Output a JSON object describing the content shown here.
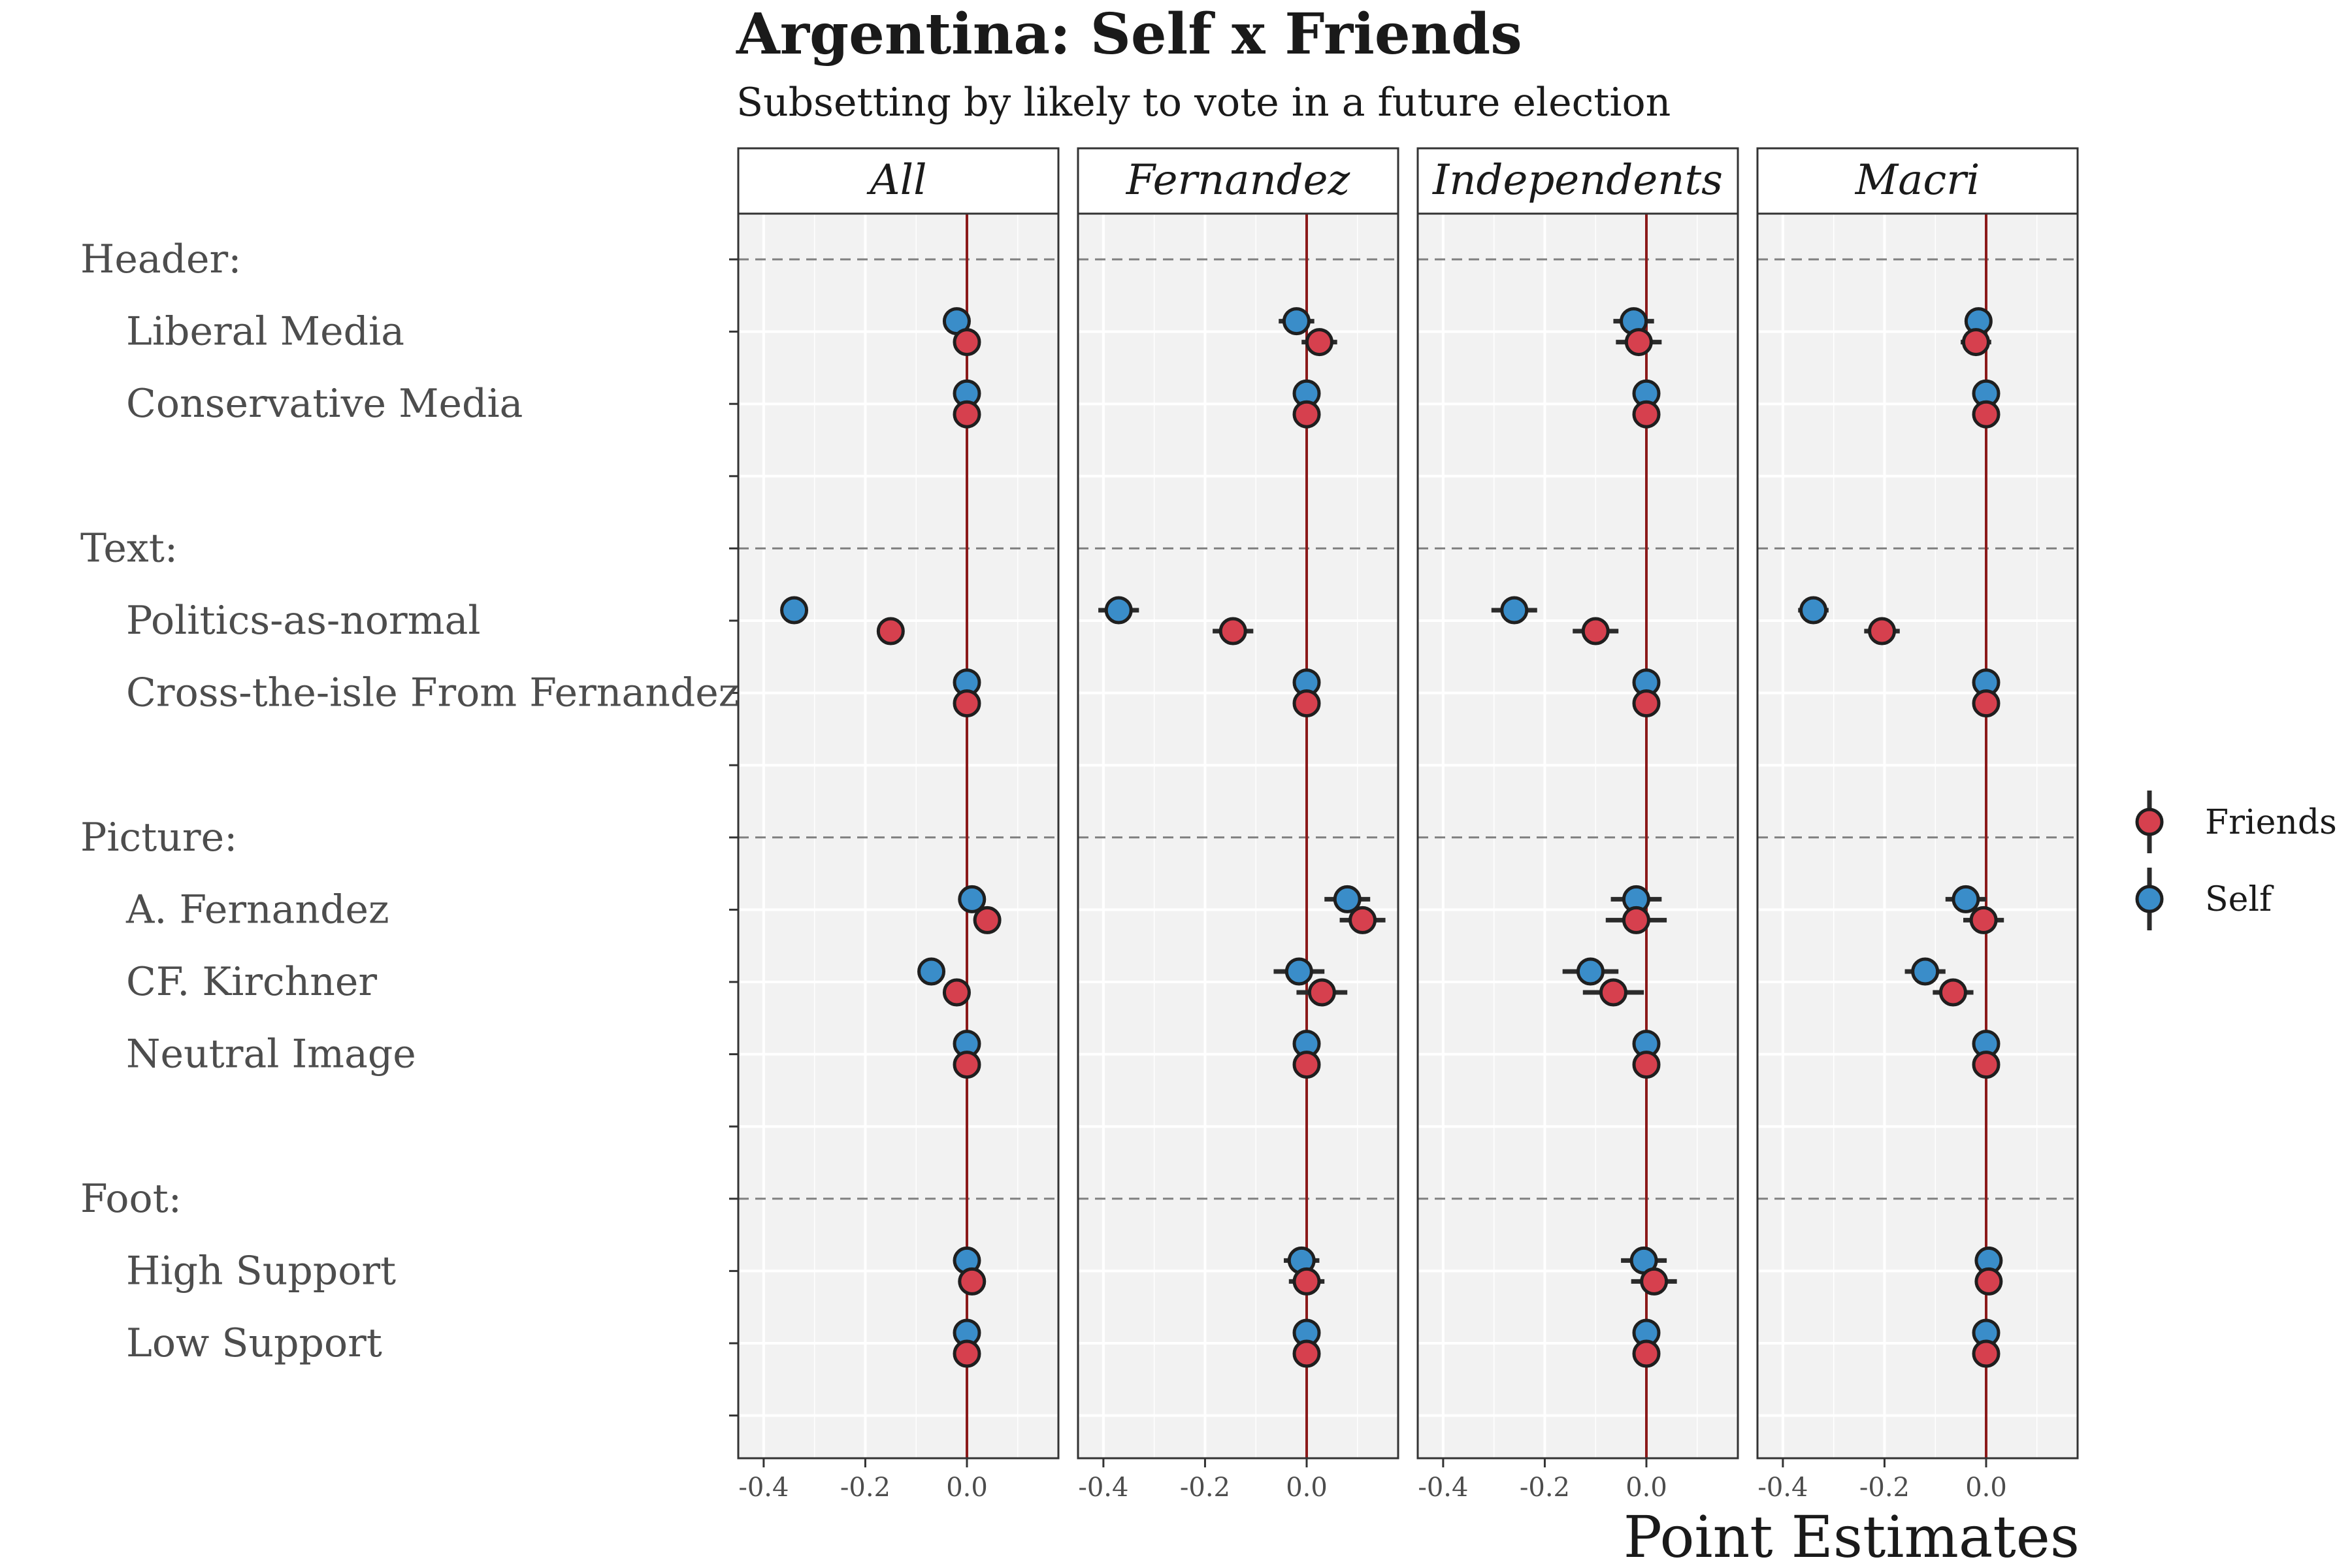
{
  "title": "Argentina: Self x Friends",
  "subtitle": "Subsetting by likely to vote in a future election",
  "chart_data": {
    "type": "scatter",
    "title": "Argentina: Self x Friends",
    "subtitle": "Subsetting by likely to vote in a future election",
    "xlabel": "Point Estimates",
    "ylabel": "",
    "xlim": [
      -0.45,
      0.18
    ],
    "x_ticks": [
      "-0.4",
      "-0.2",
      "0.0"
    ],
    "x_tick_values": [
      -0.4,
      -0.2,
      0.0
    ],
    "reference_line_x": 0.0,
    "reference_line_color": "#8b1a1a",
    "grid": true,
    "legend_position": "right",
    "legend": [
      {
        "name": "Friends",
        "color": "#d6404e"
      },
      {
        "name": "Self",
        "color": "#3a8dc9"
      }
    ],
    "rows": [
      {
        "label": "Header:",
        "type": "group"
      },
      {
        "label": "Liberal Media",
        "type": "item"
      },
      {
        "label": "Conservative Media",
        "type": "item"
      },
      {
        "label": "",
        "type": "spacer"
      },
      {
        "label": "Text:",
        "type": "group"
      },
      {
        "label": "Politics-as-normal",
        "type": "item"
      },
      {
        "label": "Cross-the-isle From Fernandez",
        "type": "item"
      },
      {
        "label": "",
        "type": "spacer"
      },
      {
        "label": "Picture:",
        "type": "group"
      },
      {
        "label": "A. Fernandez",
        "type": "item"
      },
      {
        "label": "CF. Kirchner",
        "type": "item"
      },
      {
        "label": "Neutral Image",
        "type": "item"
      },
      {
        "label": "",
        "type": "spacer"
      },
      {
        "label": "Foot:",
        "type": "group"
      },
      {
        "label": "High Support",
        "type": "item"
      },
      {
        "label": "Low Support",
        "type": "item"
      },
      {
        "label": "",
        "type": "spacer"
      }
    ],
    "panels": [
      {
        "name": "All",
        "series": [
          {
            "name": "Self",
            "points": [
              {
                "row": "Liberal Media",
                "x": -0.02,
                "err": 0.0
              },
              {
                "row": "Conservative Media",
                "x": 0.0,
                "err": 0.0
              },
              {
                "row": "Politics-as-normal",
                "x": -0.34,
                "err": 0.0
              },
              {
                "row": "Cross-the-isle From Fernandez",
                "x": 0.0,
                "err": 0.0
              },
              {
                "row": "A. Fernandez",
                "x": 0.01,
                "err": 0.0
              },
              {
                "row": "CF. Kirchner",
                "x": -0.07,
                "err": 0.0
              },
              {
                "row": "Neutral Image",
                "x": 0.0,
                "err": 0.0
              },
              {
                "row": "High Support",
                "x": 0.0,
                "err": 0.0
              },
              {
                "row": "Low Support",
                "x": 0.0,
                "err": 0.0
              }
            ]
          },
          {
            "name": "Friends",
            "points": [
              {
                "row": "Liberal Media",
                "x": 0.0,
                "err": 0.0
              },
              {
                "row": "Conservative Media",
                "x": 0.0,
                "err": 0.0
              },
              {
                "row": "Politics-as-normal",
                "x": -0.15,
                "err": 0.0
              },
              {
                "row": "Cross-the-isle From Fernandez",
                "x": 0.0,
                "err": 0.0
              },
              {
                "row": "A. Fernandez",
                "x": 0.04,
                "err": 0.0
              },
              {
                "row": "CF. Kirchner",
                "x": -0.02,
                "err": 0.0
              },
              {
                "row": "Neutral Image",
                "x": 0.0,
                "err": 0.0
              },
              {
                "row": "High Support",
                "x": 0.01,
                "err": 0.0
              },
              {
                "row": "Low Support",
                "x": 0.0,
                "err": 0.0
              }
            ]
          }
        ]
      },
      {
        "name": "Fernandez",
        "series": [
          {
            "name": "Self",
            "points": [
              {
                "row": "Liberal Media",
                "x": -0.02,
                "err": 0.035
              },
              {
                "row": "Conservative Media",
                "x": 0.0,
                "err": 0.0
              },
              {
                "row": "Politics-as-normal",
                "x": -0.37,
                "err": 0.04
              },
              {
                "row": "Cross-the-isle From Fernandez",
                "x": 0.0,
                "err": 0.0
              },
              {
                "row": "A. Fernandez",
                "x": 0.08,
                "err": 0.045
              },
              {
                "row": "CF. Kirchner",
                "x": -0.015,
                "err": 0.05
              },
              {
                "row": "Neutral Image",
                "x": 0.0,
                "err": 0.0
              },
              {
                "row": "High Support",
                "x": -0.01,
                "err": 0.035
              },
              {
                "row": "Low Support",
                "x": 0.0,
                "err": 0.0
              }
            ]
          },
          {
            "name": "Friends",
            "points": [
              {
                "row": "Liberal Media",
                "x": 0.025,
                "err": 0.035
              },
              {
                "row": "Conservative Media",
                "x": 0.0,
                "err": 0.0
              },
              {
                "row": "Politics-as-normal",
                "x": -0.145,
                "err": 0.04
              },
              {
                "row": "Cross-the-isle From Fernandez",
                "x": 0.0,
                "err": 0.0
              },
              {
                "row": "A. Fernandez",
                "x": 0.11,
                "err": 0.045
              },
              {
                "row": "CF. Kirchner",
                "x": 0.03,
                "err": 0.05
              },
              {
                "row": "Neutral Image",
                "x": 0.0,
                "err": 0.0
              },
              {
                "row": "High Support",
                "x": 0.0,
                "err": 0.035
              },
              {
                "row": "Low Support",
                "x": 0.0,
                "err": 0.0
              }
            ]
          }
        ]
      },
      {
        "name": "Independents",
        "series": [
          {
            "name": "Self",
            "points": [
              {
                "row": "Liberal Media",
                "x": -0.025,
                "err": 0.04
              },
              {
                "row": "Conservative Media",
                "x": 0.0,
                "err": 0.0
              },
              {
                "row": "Politics-as-normal",
                "x": -0.26,
                "err": 0.045
              },
              {
                "row": "Cross-the-isle From Fernandez",
                "x": 0.0,
                "err": 0.0
              },
              {
                "row": "A. Fernandez",
                "x": -0.02,
                "err": 0.05
              },
              {
                "row": "CF. Kirchner",
                "x": -0.11,
                "err": 0.055
              },
              {
                "row": "Neutral Image",
                "x": 0.0,
                "err": 0.0
              },
              {
                "row": "High Support",
                "x": -0.005,
                "err": 0.045
              },
              {
                "row": "Low Support",
                "x": 0.0,
                "err": 0.0
              }
            ]
          },
          {
            "name": "Friends",
            "points": [
              {
                "row": "Liberal Media",
                "x": -0.015,
                "err": 0.045
              },
              {
                "row": "Conservative Media",
                "x": 0.0,
                "err": 0.0
              },
              {
                "row": "Politics-as-normal",
                "x": -0.1,
                "err": 0.045
              },
              {
                "row": "Cross-the-isle From Fernandez",
                "x": 0.0,
                "err": 0.0
              },
              {
                "row": "A. Fernandez",
                "x": -0.02,
                "err": 0.06
              },
              {
                "row": "CF. Kirchner",
                "x": -0.065,
                "err": 0.06
              },
              {
                "row": "Neutral Image",
                "x": 0.0,
                "err": 0.0
              },
              {
                "row": "High Support",
                "x": 0.015,
                "err": 0.045
              },
              {
                "row": "Low Support",
                "x": 0.0,
                "err": 0.0
              }
            ]
          }
        ]
      },
      {
        "name": "Macri",
        "series": [
          {
            "name": "Self",
            "points": [
              {
                "row": "Liberal Media",
                "x": -0.015,
                "err": 0.025
              },
              {
                "row": "Conservative Media",
                "x": 0.0,
                "err": 0.0
              },
              {
                "row": "Politics-as-normal",
                "x": -0.34,
                "err": 0.03
              },
              {
                "row": "Cross-the-isle From Fernandez",
                "x": 0.0,
                "err": 0.0
              },
              {
                "row": "A. Fernandez",
                "x": -0.04,
                "err": 0.04
              },
              {
                "row": "CF. Kirchner",
                "x": -0.12,
                "err": 0.04
              },
              {
                "row": "Neutral Image",
                "x": 0.0,
                "err": 0.0
              },
              {
                "row": "High Support",
                "x": 0.005,
                "err": 0.02
              },
              {
                "row": "Low Support",
                "x": 0.0,
                "err": 0.0
              }
            ]
          },
          {
            "name": "Friends",
            "points": [
              {
                "row": "Liberal Media",
                "x": -0.02,
                "err": 0.03
              },
              {
                "row": "Conservative Media",
                "x": 0.0,
                "err": 0.0
              },
              {
                "row": "Politics-as-normal",
                "x": -0.205,
                "err": 0.035
              },
              {
                "row": "Cross-the-isle From Fernandez",
                "x": 0.0,
                "err": 0.0
              },
              {
                "row": "A. Fernandez",
                "x": -0.005,
                "err": 0.04
              },
              {
                "row": "CF. Kirchner",
                "x": -0.065,
                "err": 0.04
              },
              {
                "row": "Neutral Image",
                "x": 0.0,
                "err": 0.0
              },
              {
                "row": "High Support",
                "x": 0.005,
                "err": 0.025
              },
              {
                "row": "Low Support",
                "x": 0.0,
                "err": 0.0
              }
            ]
          }
        ]
      }
    ]
  }
}
